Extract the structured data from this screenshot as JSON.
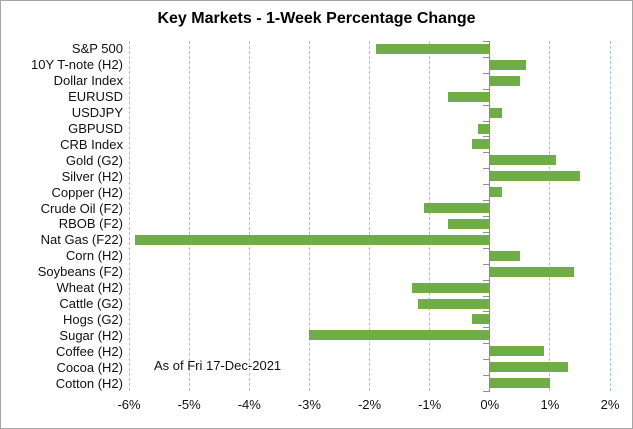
{
  "title": "Key Markets - 1-Week Percentage Change",
  "annotation": "As of Fri 17-Dec-2021",
  "colors": {
    "bar": "#70ad47",
    "gridline": "#9dc3e6",
    "axis": "#8c8c8c",
    "text": "#111111",
    "frame_border": "#a6a6a6",
    "background": "#ffffff"
  },
  "chart_data": {
    "type": "bar",
    "orientation": "horizontal",
    "title": "Key Markets - 1-Week Percentage Change",
    "xlabel": "",
    "ylabel": "",
    "xlim": [
      -6,
      2
    ],
    "grid": "vertical dashed, on every tick except 0",
    "legend": "none",
    "annotation": "As of Fri 17-Dec-2021",
    "x_ticks": [
      "-6%",
      "-5%",
      "-4%",
      "-3%",
      "-2%",
      "-1%",
      "0%",
      "1%",
      "2%"
    ],
    "x_tick_values": [
      -6,
      -5,
      -4,
      -3,
      -2,
      -1,
      0,
      1,
      2
    ],
    "categories": [
      "S&P 500",
      "10Y T-note (H2)",
      "Dollar Index",
      "EURUSD",
      "USDJPY",
      "GBPUSD",
      "CRB Index",
      "Gold (G2)",
      "Silver (H2)",
      "Copper (H2)",
      "Crude Oil (F2)",
      "RBOB (F2)",
      "Nat Gas (F22)",
      "Corn (H2)",
      "Soybeans (F2)",
      "Wheat (H2)",
      "Cattle (G2)",
      "Hogs (G2)",
      "Sugar (H2)",
      "Coffee (H2)",
      "Cocoa (H2)",
      "Cotton (H2)"
    ],
    "values": [
      -1.9,
      0.6,
      0.5,
      -0.7,
      0.2,
      -0.2,
      -0.3,
      1.1,
      1.5,
      0.2,
      -1.1,
      -0.7,
      -5.9,
      0.5,
      1.4,
      -1.3,
      -1.2,
      -0.3,
      -3.0,
      0.9,
      1.3,
      1.0
    ],
    "values_unit": "percent"
  }
}
